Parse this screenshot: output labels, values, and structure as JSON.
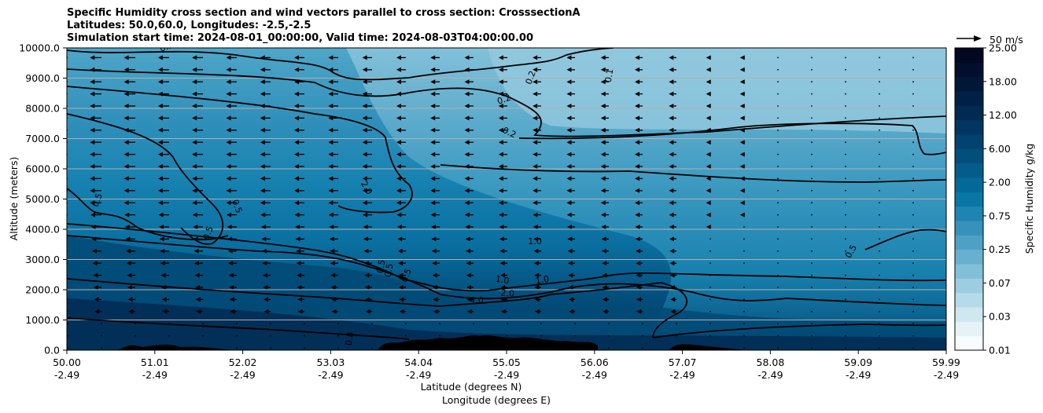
{
  "chart_data": {
    "type": "contour",
    "title_lines": [
      "Specific Humidity cross section and wind vectors parallel to cross section: CrosssectionA",
      "Latitudes: 50.0,60.0, Longitudes: -2.5,-2.5",
      "Simulation start time: 2024-08-01_00:00:00, Valid time: 2024-08-03T04:00:00.00"
    ],
    "xlabel_lines": [
      "Latitude (degrees N)",
      "Longitude (degrees E)"
    ],
    "ylabel": "Altitude (meters)",
    "xlim": [
      50.0,
      59.99
    ],
    "ylim": [
      0,
      10000
    ],
    "x_ticks": [
      {
        "lat": "50.00",
        "lon": "-2.49"
      },
      {
        "lat": "51.01",
        "lon": "-2.49"
      },
      {
        "lat": "52.02",
        "lon": "-2.49"
      },
      {
        "lat": "53.03",
        "lon": "-2.49"
      },
      {
        "lat": "54.04",
        "lon": "-2.49"
      },
      {
        "lat": "55.05",
        "lon": "-2.49"
      },
      {
        "lat": "56.06",
        "lon": "-2.49"
      },
      {
        "lat": "57.07",
        "lon": "-2.49"
      },
      {
        "lat": "58.08",
        "lon": "-2.49"
      },
      {
        "lat": "59.09",
        "lon": "-2.49"
      },
      {
        "lat": "59.99",
        "lon": "-2.49"
      }
    ],
    "y_ticks": [
      "0.0",
      "1000.0",
      "2000.0",
      "3000.0",
      "4000.0",
      "5000.0",
      "6000.0",
      "7000.0",
      "8000.0",
      "9000.0",
      "10000.0"
    ],
    "colorbar": {
      "label": "Specific Humidity g/kg",
      "tick_labels": [
        "0.01",
        "0.03",
        "0.07",
        "0.25",
        "0.75",
        "2.00",
        "6.00",
        "12.00",
        "18.00",
        "25.00"
      ],
      "colors": [
        "#f7fbfd",
        "#e6f2f6",
        "#cfe7ef",
        "#b5dbe8",
        "#9ccde1",
        "#82bfd8",
        "#68b0cf",
        "#4ea1c5",
        "#3692bb",
        "#1e84b1",
        "#0a76a6",
        "#046998",
        "#035c8a",
        "#024f7c",
        "#02426e",
        "#023560",
        "#012a52",
        "#012045",
        "#011738",
        "#010f2c",
        "#01081f"
      ]
    },
    "contour_labels": [
      "0.2",
      "0.2",
      "0.2",
      "0.2",
      "0.1",
      "2.0",
      "0.5",
      "0.5",
      "0.5",
      "0.5",
      "1.0",
      "1.0",
      "1.0",
      "2.0",
      "4.0",
      "0.8",
      "0",
      "0.5",
      "0.5",
      "0.5"
    ],
    "quiver_key": {
      "label": "50 m/s"
    }
  }
}
